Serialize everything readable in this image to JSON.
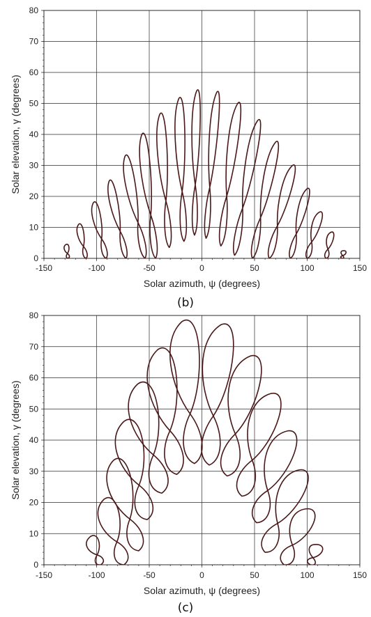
{
  "colors": {
    "curve": "#4a1818",
    "grid": "#2b2b2b",
    "text": "#222222"
  },
  "chart_data": [
    {
      "type": "line",
      "panel_label": "(b)",
      "xlabel": "Solar azimuth, ψ (degrees)",
      "ylabel": "Solar elevation, γ (degrees)",
      "xlim": [
        -150,
        150
      ],
      "ylim": [
        0,
        80
      ],
      "xticks": [
        "-150",
        "-100",
        "-50",
        "0",
        "50",
        "100",
        "150"
      ],
      "yticks": [
        "0",
        "10",
        "20",
        "30",
        "40",
        "50",
        "60",
        "70",
        "80"
      ],
      "grid": true,
      "analemmas": [
        {
          "tx": -129,
          "ty": 4.5,
          "bx": -127,
          "by": 0,
          "w": 3
        },
        {
          "tx": -117,
          "ty": 11,
          "bx": -110,
          "by": 0,
          "w": 4
        },
        {
          "tx": -103,
          "ty": 18,
          "bx": -91,
          "by": 0,
          "w": 5
        },
        {
          "tx": -88,
          "ty": 25,
          "bx": -72,
          "by": 0,
          "w": 5
        },
        {
          "tx": -73,
          "ty": 33,
          "bx": -54,
          "by": 0,
          "w": 6
        },
        {
          "tx": -57,
          "ty": 40,
          "bx": -44,
          "by": 0,
          "w": 6
        },
        {
          "tx": -40,
          "ty": 46.5,
          "bx": -31,
          "by": 3.5,
          "w": 6
        },
        {
          "tx": -22,
          "ty": 51.5,
          "bx": -17,
          "by": 5.5,
          "w": 6
        },
        {
          "tx": -5,
          "ty": 54,
          "bx": -7,
          "by": 7.5,
          "w": 5
        },
        {
          "tx": 14,
          "ty": 53.5,
          "bx": 4,
          "by": 6.5,
          "w": 5
        },
        {
          "tx": 34,
          "ty": 50,
          "bx": 18,
          "by": 4,
          "w": 6
        },
        {
          "tx": 53,
          "ty": 44.5,
          "bx": 31,
          "by": 1,
          "w": 6
        },
        {
          "tx": 70,
          "ty": 37.5,
          "bx": 48,
          "by": 0,
          "w": 6
        },
        {
          "tx": 86,
          "ty": 30,
          "bx": 64,
          "by": 0,
          "w": 6
        },
        {
          "tx": 100,
          "ty": 22.5,
          "bx": 84,
          "by": 0,
          "w": 5
        },
        {
          "tx": 112,
          "ty": 15,
          "bx": 100,
          "by": 0,
          "w": 5
        },
        {
          "tx": 123,
          "ty": 8.5,
          "bx": 118,
          "by": 0,
          "w": 4
        },
        {
          "tx": 135,
          "ty": 2.5,
          "bx": 133,
          "by": 0,
          "w": 3
        }
      ]
    },
    {
      "type": "line",
      "panel_label": "(c)",
      "xlabel": "Solar azimuth, ψ (degrees)",
      "ylabel": "Solar elevation, γ (degrees)",
      "xlim": [
        -150,
        150
      ],
      "ylim": [
        0,
        80
      ],
      "xticks": [
        "-150",
        "-100",
        "-50",
        "0",
        "50",
        "100",
        "150"
      ],
      "yticks": [
        "0",
        "10",
        "20",
        "30",
        "40",
        "50",
        "60",
        "70",
        "80"
      ],
      "grid": true,
      "analemmas": [
        {
          "tx": -106,
          "ty": 9,
          "bx": -96,
          "by": 0,
          "w": 8
        },
        {
          "tx": -93,
          "ty": 21,
          "bx": -74,
          "by": 0,
          "w": 13
        },
        {
          "tx": -84,
          "ty": 33.5,
          "bx": -60,
          "by": 4.5,
          "w": 15
        },
        {
          "tx": -74,
          "ty": 46,
          "bx": -52,
          "by": 14.5,
          "w": 17
        },
        {
          "tx": -61,
          "ty": 58,
          "bx": -38,
          "by": 23,
          "w": 18
        },
        {
          "tx": -42,
          "ty": 69,
          "bx": -24,
          "by": 29,
          "w": 18
        },
        {
          "tx": -19,
          "ty": 78,
          "bx": -7,
          "by": 32.5,
          "w": 18
        },
        {
          "tx": 18,
          "ty": 77,
          "bx": 7,
          "by": 32,
          "w": 18
        },
        {
          "tx": 46,
          "ty": 67,
          "bx": 24,
          "by": 28.5,
          "w": 18
        },
        {
          "tx": 66,
          "ty": 55,
          "bx": 38,
          "by": 22,
          "w": 17
        },
        {
          "tx": 82,
          "ty": 43,
          "bx": 52,
          "by": 13.5,
          "w": 16
        },
        {
          "tx": 94,
          "ty": 30.5,
          "bx": 60,
          "by": 4,
          "w": 15
        },
        {
          "tx": 101,
          "ty": 18,
          "bx": 78,
          "by": 0,
          "w": 13
        },
        {
          "tx": 110,
          "ty": 6.5,
          "bx": 103,
          "by": 0,
          "w": 8
        }
      ]
    }
  ]
}
